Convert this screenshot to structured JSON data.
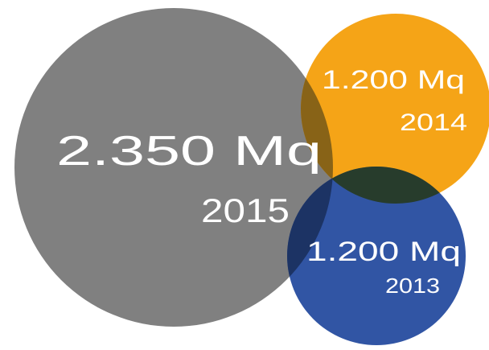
{
  "diagram": {
    "bubbles": [
      {
        "value": "2.350 Mq",
        "year": "2015",
        "color": "#808080",
        "opacity": 1.0
      },
      {
        "value": "1.200 Mq",
        "year": "2014",
        "color": "#F5A00E",
        "opacity": 0.96
      },
      {
        "value": "1.200 Mq",
        "year": "2013",
        "color": "#1F479C",
        "opacity": 0.92
      }
    ]
  }
}
